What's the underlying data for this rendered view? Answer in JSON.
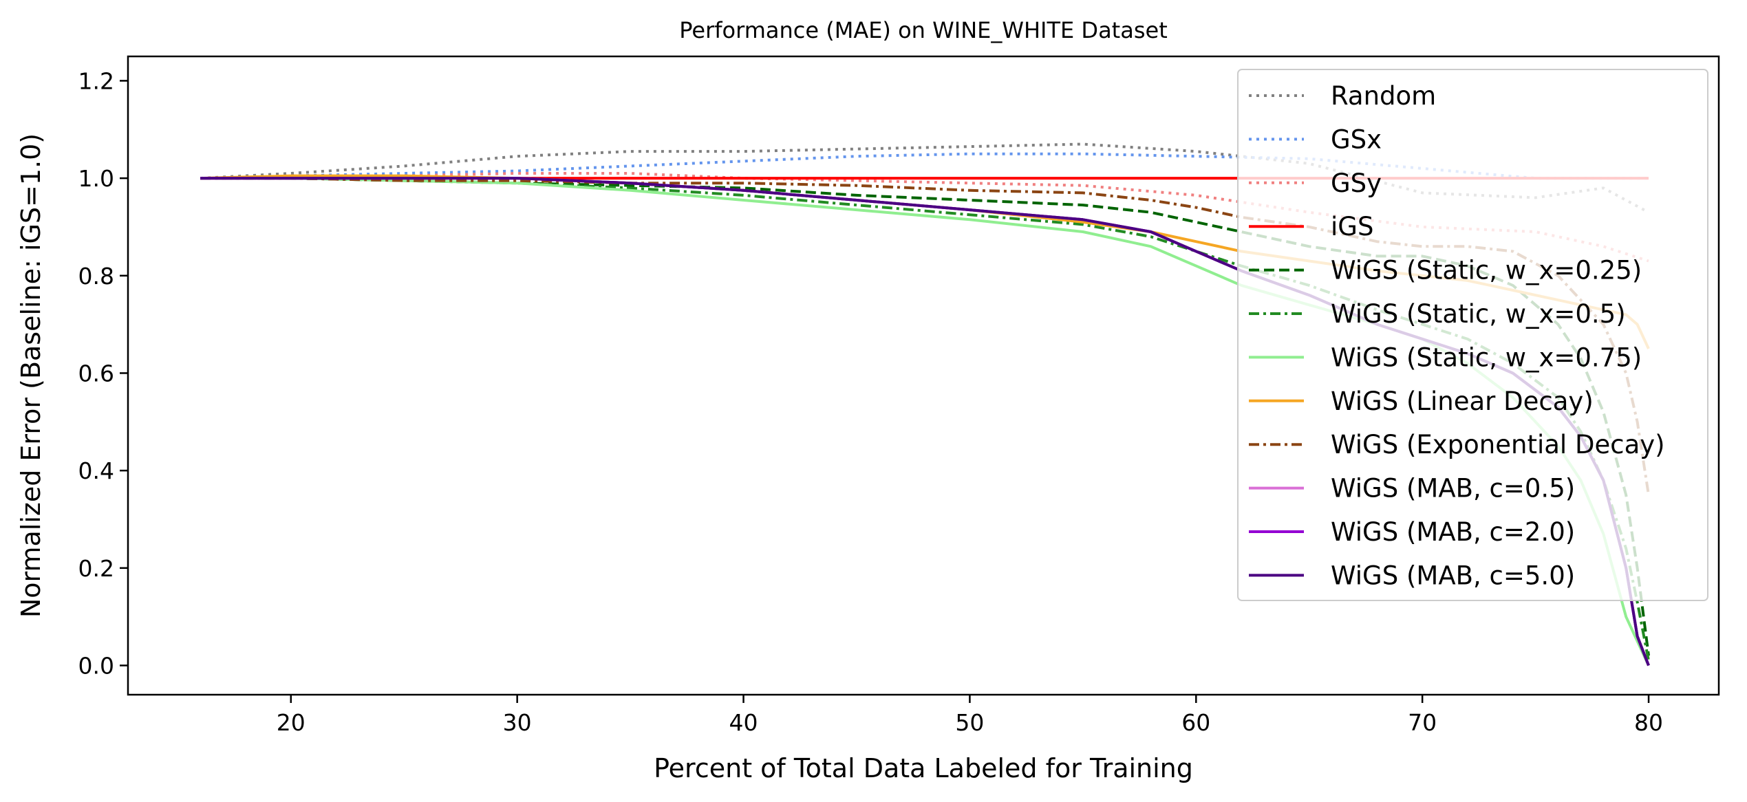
{
  "chart_data": {
    "type": "line",
    "title": "Performance (MAE) on WINE_WHITE Dataset",
    "xlabel": "Percent of Total Data Labeled for Training",
    "ylabel": "Normalized Error (Baseline: iGS=1.0)",
    "xlim": [
      12.8,
      83.1
    ],
    "ylim": [
      -0.06,
      1.25
    ],
    "xticks": [
      20,
      30,
      40,
      50,
      60,
      70,
      80
    ],
    "yticks": [
      0.0,
      0.2,
      0.4,
      0.6,
      0.8,
      1.0,
      1.2
    ],
    "xtick_labels": [
      "20",
      "30",
      "40",
      "50",
      "60",
      "70",
      "80"
    ],
    "ytick_labels": [
      "0.0",
      "0.2",
      "0.4",
      "0.6",
      "0.8",
      "1.0",
      "1.2"
    ],
    "grid": false,
    "legend_position": "top-right",
    "series": [
      {
        "name": "Random",
        "color": "#808080",
        "dash": "dotted",
        "x": [
          16,
          20,
          25,
          30,
          35,
          40,
          45,
          50,
          55,
          60,
          65,
          70,
          75,
          78,
          80
        ],
        "y": [
          1.0,
          1.01,
          1.025,
          1.045,
          1.055,
          1.055,
          1.06,
          1.065,
          1.07,
          1.055,
          1.03,
          0.97,
          0.96,
          0.98,
          0.93
        ]
      },
      {
        "name": "GSx",
        "color": "#6495ed",
        "dash": "dotted",
        "x": [
          16,
          20,
          25,
          30,
          35,
          40,
          45,
          50,
          55,
          60,
          65,
          70,
          75,
          78,
          80
        ],
        "y": [
          1.0,
          1.005,
          1.01,
          1.015,
          1.025,
          1.035,
          1.045,
          1.05,
          1.05,
          1.045,
          1.04,
          1.02,
          1.0,
          1.0,
          1.0
        ]
      },
      {
        "name": "GSy",
        "color": "#f08080",
        "dash": "dotted",
        "x": [
          16,
          20,
          25,
          30,
          35,
          40,
          45,
          50,
          55,
          60,
          65,
          70,
          75,
          78,
          80
        ],
        "y": [
          1.0,
          1.005,
          1.005,
          1.01,
          1.01,
          1.0,
          0.995,
          0.99,
          0.985,
          0.965,
          0.93,
          0.9,
          0.89,
          0.86,
          0.83
        ]
      },
      {
        "name": "iGS",
        "color": "#ff0000",
        "dash": "solid",
        "x": [
          16,
          80
        ],
        "y": [
          1.0,
          1.0
        ]
      },
      {
        "name": "WiGS (Static, w_x=0.25)",
        "color": "#006400",
        "dash": "dashed",
        "x": [
          16,
          20,
          25,
          30,
          35,
          40,
          45,
          50,
          55,
          58,
          60,
          62,
          65,
          68,
          70,
          72,
          74,
          76,
          77,
          78,
          79,
          79.5,
          80
        ],
        "y": [
          1.0,
          1.0,
          0.995,
          0.99,
          0.985,
          0.98,
          0.965,
          0.955,
          0.945,
          0.93,
          0.91,
          0.89,
          0.86,
          0.84,
          0.84,
          0.82,
          0.78,
          0.7,
          0.63,
          0.52,
          0.35,
          0.2,
          0.02
        ]
      },
      {
        "name": "WiGS (Static, w_x=0.5)",
        "color": "#228b22",
        "dash": "dashdot",
        "x": [
          16,
          20,
          25,
          30,
          35,
          40,
          45,
          50,
          55,
          58,
          60,
          62,
          65,
          68,
          70,
          72,
          74,
          76,
          77,
          78,
          79,
          79.5,
          80
        ],
        "y": [
          1.0,
          1.0,
          0.995,
          0.99,
          0.98,
          0.965,
          0.945,
          0.925,
          0.905,
          0.88,
          0.85,
          0.82,
          0.78,
          0.73,
          0.7,
          0.67,
          0.62,
          0.55,
          0.48,
          0.38,
          0.24,
          0.13,
          0.01
        ]
      },
      {
        "name": "WiGS (Static, w_x=0.75)",
        "color": "#90ee90",
        "dash": "solid",
        "x": [
          16,
          20,
          25,
          30,
          35,
          40,
          45,
          50,
          55,
          58,
          60,
          62,
          65,
          68,
          70,
          72,
          74,
          76,
          77,
          78,
          79,
          79.5,
          80
        ],
        "y": [
          1.0,
          1.0,
          0.995,
          0.99,
          0.975,
          0.955,
          0.935,
          0.915,
          0.89,
          0.86,
          0.82,
          0.78,
          0.74,
          0.7,
          0.67,
          0.62,
          0.55,
          0.45,
          0.38,
          0.27,
          0.1,
          0.05,
          0.0
        ]
      },
      {
        "name": "WiGS (Linear Decay)",
        "color": "#f5a623",
        "dash": "solid",
        "x": [
          16,
          20,
          25,
          30,
          35,
          40,
          45,
          50,
          55,
          58,
          60,
          62,
          65,
          68,
          70,
          72,
          74,
          76,
          77,
          78,
          79,
          79.5,
          80
        ],
        "y": [
          1.0,
          1.005,
          1.005,
          1.0,
          0.99,
          0.975,
          0.955,
          0.935,
          0.91,
          0.89,
          0.87,
          0.85,
          0.83,
          0.81,
          0.8,
          0.79,
          0.77,
          0.75,
          0.74,
          0.73,
          0.72,
          0.7,
          0.65
        ]
      },
      {
        "name": "WiGS (Exponential Decay)",
        "color": "#8b4513",
        "dash": "dashdot",
        "x": [
          16,
          20,
          25,
          30,
          35,
          40,
          45,
          50,
          55,
          58,
          60,
          62,
          65,
          68,
          70,
          72,
          74,
          76,
          77,
          78,
          79,
          79.5,
          80
        ],
        "y": [
          1.0,
          1.0,
          0.995,
          0.995,
          0.99,
          0.99,
          0.985,
          0.975,
          0.97,
          0.955,
          0.94,
          0.92,
          0.9,
          0.87,
          0.86,
          0.86,
          0.85,
          0.8,
          0.75,
          0.7,
          0.6,
          0.5,
          0.35
        ]
      },
      {
        "name": "WiGS (MAB, c=0.5)",
        "color": "#da70d6",
        "dash": "solid",
        "x": [
          16,
          20,
          25,
          30,
          35,
          40,
          45,
          50,
          55,
          58,
          60,
          62,
          65,
          68,
          70,
          72,
          74,
          76,
          77,
          78,
          79,
          79.5,
          80
        ],
        "y": [
          1.0,
          1.0,
          1.0,
          1.0,
          0.99,
          0.975,
          0.955,
          0.935,
          0.915,
          0.89,
          0.85,
          0.81,
          0.76,
          0.7,
          0.67,
          0.64,
          0.6,
          0.53,
          0.47,
          0.38,
          0.2,
          0.06,
          0.0
        ]
      },
      {
        "name": "WiGS (MAB, c=2.0)",
        "color": "#9400d3",
        "dash": "solid",
        "x": [
          16,
          20,
          25,
          30,
          35,
          40,
          45,
          50,
          55,
          58,
          60,
          62,
          65,
          68,
          70,
          72,
          74,
          76,
          77,
          78,
          79,
          79.5,
          80
        ],
        "y": [
          1.0,
          1.0,
          1.0,
          1.0,
          0.99,
          0.975,
          0.955,
          0.935,
          0.915,
          0.89,
          0.85,
          0.81,
          0.76,
          0.7,
          0.67,
          0.64,
          0.6,
          0.53,
          0.47,
          0.38,
          0.2,
          0.06,
          0.0
        ]
      },
      {
        "name": "WiGS (MAB, c=5.0)",
        "color": "#4b0082",
        "dash": "solid",
        "x": [
          16,
          20,
          25,
          30,
          35,
          40,
          45,
          50,
          55,
          58,
          60,
          62,
          65,
          68,
          70,
          72,
          74,
          76,
          77,
          78,
          79,
          79.5,
          80
        ],
        "y": [
          1.0,
          1.0,
          1.0,
          1.0,
          0.99,
          0.975,
          0.955,
          0.935,
          0.915,
          0.89,
          0.85,
          0.81,
          0.76,
          0.7,
          0.67,
          0.64,
          0.6,
          0.53,
          0.47,
          0.38,
          0.2,
          0.06,
          0.0
        ]
      }
    ]
  }
}
